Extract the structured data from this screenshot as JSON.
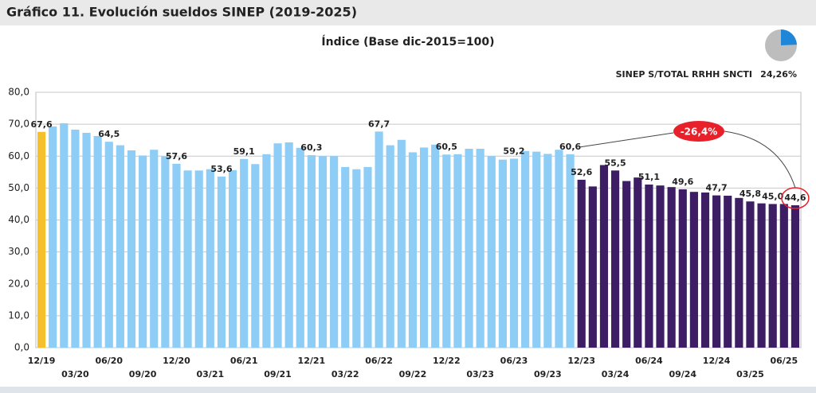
{
  "header": {
    "title": "Gráfico 11. Evolución sueldos SINEP (2019-2025)"
  },
  "indicator": {
    "type": "pie",
    "label": "SINEP S/TOTAL RRHH SNCTI",
    "value": 24.26,
    "value_label": "24,26%",
    "color": "#1f86d8",
    "rest_color": "#bdbdbd"
  },
  "chart_data": {
    "type": "bar",
    "title": "Índice (Base dic-2015=100)",
    "categories": [
      "12/19",
      null,
      null,
      "03/20",
      null,
      null,
      "06/20",
      null,
      null,
      "09/20",
      null,
      null,
      "12/20",
      null,
      null,
      "03/21",
      null,
      null,
      "06/21",
      null,
      null,
      "09/21",
      null,
      null,
      "12/21",
      null,
      null,
      "03/22",
      null,
      null,
      "06/22",
      null,
      null,
      "09/22",
      null,
      null,
      "12/22",
      null,
      null,
      "03/23",
      null,
      null,
      "06/23",
      null,
      null,
      "09/23",
      null,
      null,
      "12/23",
      null,
      null,
      "03/24",
      null,
      null,
      "06/24",
      null,
      null,
      "09/24",
      null,
      null,
      "12/24",
      null,
      null,
      "03/25",
      null,
      null,
      "06/25",
      null
    ],
    "values": [
      67.6,
      69.3,
      70.3,
      68.3,
      67.3,
      66.3,
      64.5,
      63.4,
      61.8,
      60.2,
      62.0,
      59.9,
      57.6,
      55.5,
      55.5,
      55.9,
      53.6,
      55.6,
      59.1,
      57.5,
      60.6,
      64.0,
      64.3,
      62.6,
      60.3,
      60.0,
      60.0,
      56.6,
      55.9,
      56.6,
      67.7,
      63.4,
      65.1,
      61.2,
      62.7,
      63.6,
      60.5,
      60.6,
      62.3,
      62.3,
      60.0,
      58.9,
      59.2,
      61.6,
      61.4,
      60.7,
      62.0,
      60.6,
      52.6,
      50.5,
      57.2,
      55.5,
      52.2,
      53.3,
      51.1,
      50.8,
      50.3,
      49.6,
      48.8,
      48.6,
      47.7,
      47.6,
      46.9,
      45.8,
      45.2,
      45.0,
      45.0,
      44.6
    ],
    "value_labels": [
      "67,6",
      null,
      null,
      null,
      null,
      null,
      "64,5",
      null,
      null,
      null,
      null,
      null,
      "57,6",
      null,
      null,
      null,
      "53,6",
      null,
      "59,1",
      null,
      null,
      null,
      null,
      null,
      "60,3",
      null,
      null,
      null,
      null,
      null,
      "67,7",
      null,
      null,
      null,
      null,
      null,
      "60,5",
      null,
      null,
      null,
      null,
      null,
      "59,2",
      null,
      null,
      null,
      null,
      "60,6",
      "52,6",
      null,
      null,
      "55,5",
      null,
      null,
      "51,1",
      null,
      null,
      "49,6",
      null,
      null,
      "47,7",
      null,
      null,
      "45,8",
      null,
      "45,0",
      null,
      "44,6"
    ],
    "colors": [
      "#f6c02c",
      "#8ecdf6",
      "#8ecdf6",
      "#8ecdf6",
      "#8ecdf6",
      "#8ecdf6",
      "#8ecdf6",
      "#8ecdf6",
      "#8ecdf6",
      "#8ecdf6",
      "#8ecdf6",
      "#8ecdf6",
      "#8ecdf6",
      "#8ecdf6",
      "#8ecdf6",
      "#8ecdf6",
      "#8ecdf6",
      "#8ecdf6",
      "#8ecdf6",
      "#8ecdf6",
      "#8ecdf6",
      "#8ecdf6",
      "#8ecdf6",
      "#8ecdf6",
      "#8ecdf6",
      "#8ecdf6",
      "#8ecdf6",
      "#8ecdf6",
      "#8ecdf6",
      "#8ecdf6",
      "#8ecdf6",
      "#8ecdf6",
      "#8ecdf6",
      "#8ecdf6",
      "#8ecdf6",
      "#8ecdf6",
      "#8ecdf6",
      "#8ecdf6",
      "#8ecdf6",
      "#8ecdf6",
      "#8ecdf6",
      "#8ecdf6",
      "#8ecdf6",
      "#8ecdf6",
      "#8ecdf6",
      "#8ecdf6",
      "#8ecdf6",
      "#8ecdf6",
      "#3d1d63",
      "#3d1d63",
      "#3d1d63",
      "#3d1d63",
      "#3d1d63",
      "#3d1d63",
      "#3d1d63",
      "#3d1d63",
      "#3d1d63",
      "#3d1d63",
      "#3d1d63",
      "#3d1d63",
      "#3d1d63",
      "#3d1d63",
      "#3d1d63",
      "#3d1d63",
      "#3d1d63",
      "#3d1d63",
      "#3d1d63",
      "#3d1d63"
    ],
    "ylim": [
      0,
      80
    ],
    "yticks": [
      {
        "value": 0,
        "label": "0,0"
      },
      {
        "value": 10,
        "label": "10,0"
      },
      {
        "value": 20,
        "label": "20,0"
      },
      {
        "value": 30,
        "label": "30,0"
      },
      {
        "value": 40,
        "label": "40,0"
      },
      {
        "value": 50,
        "label": "50,0"
      },
      {
        "value": 60,
        "label": "60,0"
      },
      {
        "value": 70,
        "label": "70,0"
      },
      {
        "value": 80,
        "label": "80,0"
      }
    ],
    "grid": true,
    "annotations": [
      {
        "text": "-26,4%"
      }
    ]
  }
}
